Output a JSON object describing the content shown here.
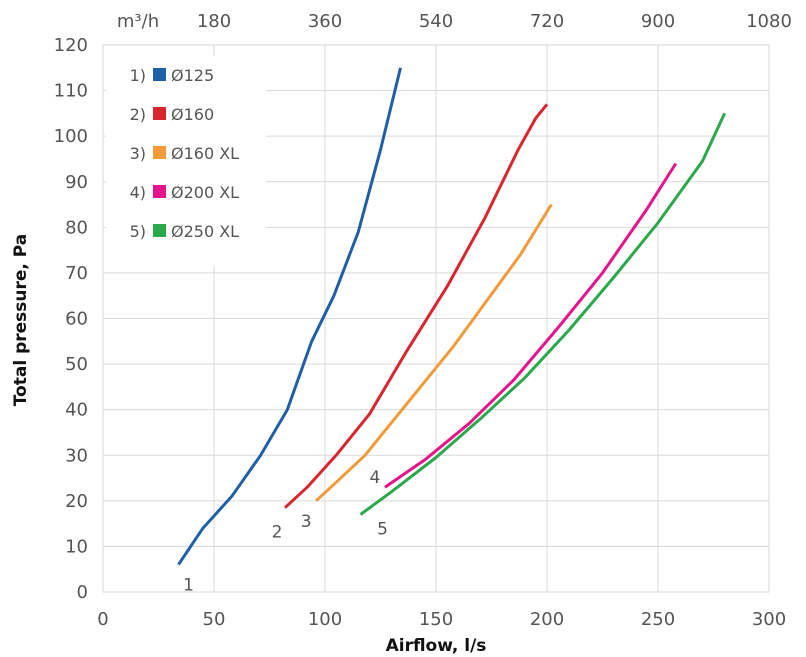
{
  "chart_data": {
    "type": "line",
    "xlabel": "Airflow, l/s",
    "ylabel": "Total pressure, Pa",
    "xlim": [
      0,
      300
    ],
    "ylim": [
      0,
      120
    ],
    "x_ticks": [
      0,
      50,
      100,
      150,
      200,
      250,
      300
    ],
    "y_ticks": [
      0,
      10,
      20,
      30,
      40,
      50,
      60,
      70,
      80,
      90,
      100,
      110,
      120
    ],
    "secondary_x_axis": {
      "unit": "m³/h",
      "position": "top",
      "ticks": [
        180,
        360,
        540,
        720,
        900,
        1080
      ]
    },
    "grid": true,
    "legend": {
      "position": "top-left"
    },
    "series": [
      {
        "name": "Ø125",
        "legend_number": "1",
        "curve_label": "1",
        "color": "#1f5fa8",
        "x": [
          34,
          45,
          58,
          71,
          83,
          94,
          104,
          115,
          125,
          134
        ],
        "y": [
          6,
          14,
          21,
          30,
          40,
          55,
          65,
          79,
          97,
          115
        ]
      },
      {
        "name": "Ø160",
        "legend_number": "2",
        "curve_label": "2",
        "color": "#d9262e",
        "x": [
          82,
          92,
          105,
          120,
          137,
          155,
          172,
          187,
          195,
          200
        ],
        "y": [
          18.5,
          23,
          30,
          39,
          53,
          67,
          82,
          97,
          104,
          107
        ]
      },
      {
        "name": "Ø160 XL",
        "legend_number": "3",
        "curve_label": "3",
        "color": "#f09a3a",
        "x": [
          96,
          106,
          118,
          128,
          143,
          158,
          173,
          188,
          202
        ],
        "y": [
          20,
          24.5,
          30,
          36,
          45,
          54,
          64,
          74,
          85
        ]
      },
      {
        "name": "Ø200 XL",
        "legend_number": "4",
        "curve_label": "4",
        "color": "#e4158c",
        "x": [
          127,
          145,
          165,
          185,
          205,
          225,
          245,
          258
        ],
        "y": [
          23,
          29,
          37,
          46.5,
          58,
          70,
          84,
          94
        ]
      },
      {
        "name": "Ø250 XL",
        "legend_number": "5",
        "curve_label": "5",
        "color": "#2aa84a",
        "x": [
          116,
          130,
          150,
          170,
          190,
          210,
          230,
          250,
          270,
          280
        ],
        "y": [
          17,
          22,
          29.5,
          38,
          47,
          57.5,
          69,
          81,
          94.5,
          105
        ]
      }
    ]
  }
}
